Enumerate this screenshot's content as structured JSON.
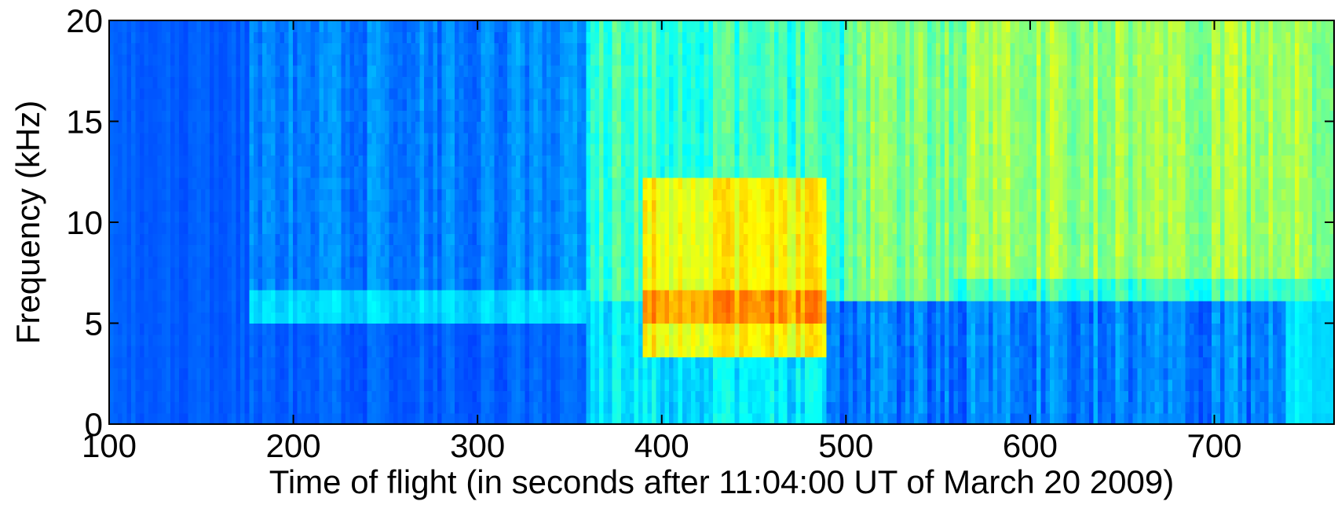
{
  "chart_data": {
    "type": "spectrogram",
    "x_label": "Time of flight (in seconds after 11:04:00 UT of March 20 2009)",
    "y_label": "Frequency (kHz)",
    "xlim": [
      100,
      765
    ],
    "ylim": [
      0,
      20
    ],
    "xticks": [
      100,
      200,
      300,
      400,
      500,
      600,
      700
    ],
    "yticks": [
      0,
      5,
      10,
      15,
      20
    ],
    "colormap": "jet"
  }
}
